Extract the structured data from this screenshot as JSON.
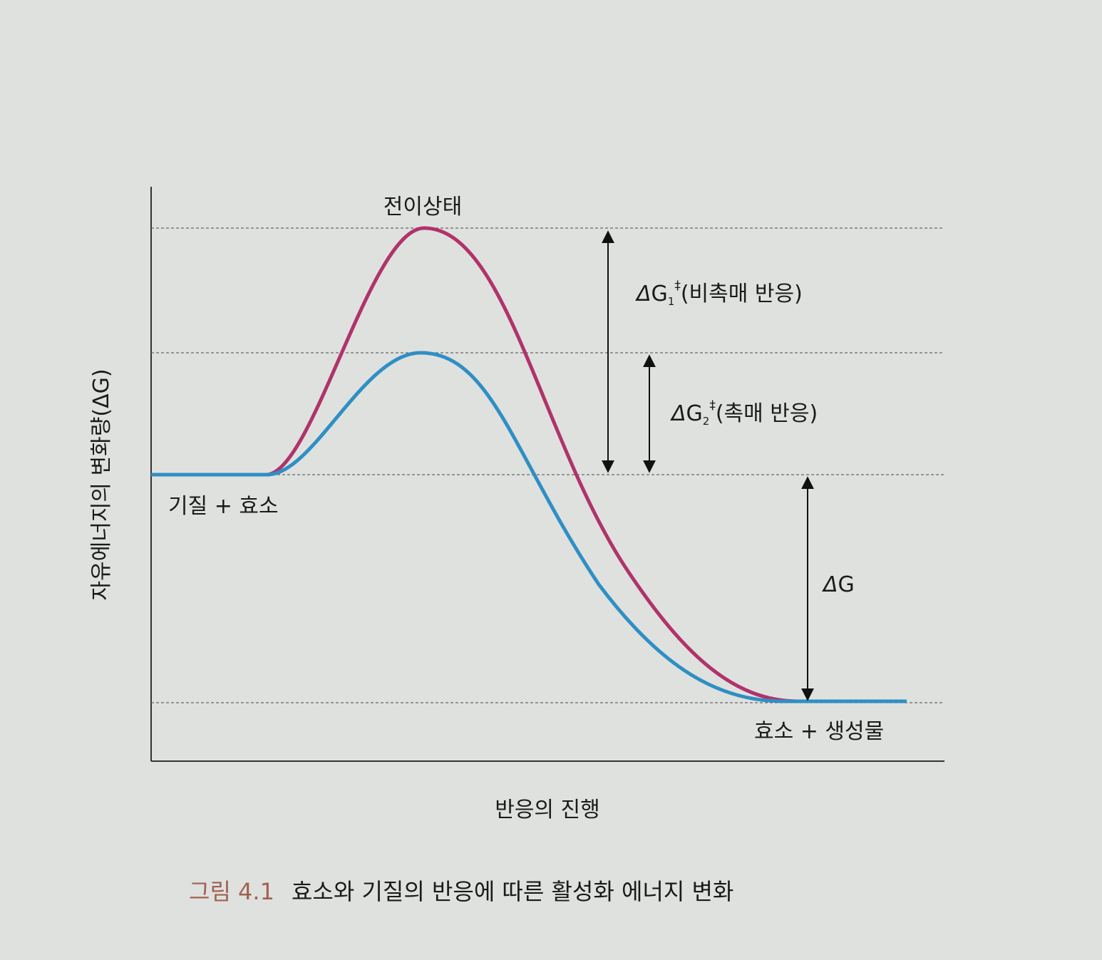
{
  "diagram": {
    "y_axis_label": "자유에너지의 변화량(ΔG)",
    "x_axis_label": "반응의 진행",
    "transition_state_label": "전이상태",
    "reactants_label": "기질 + 효소",
    "products_label": "효소 + 생성물",
    "uncatalyzed": {
      "delta": "Δ",
      "g": "G",
      "subscript": "1",
      "dagger": "‡",
      "desc": "(비촉매 반응)",
      "color": "#b0336b"
    },
    "catalyzed": {
      "delta": "Δ",
      "g": "G",
      "subscript": "2",
      "dagger": "‡",
      "desc": "(촉매 반응)",
      "color": "#2f8fc4"
    },
    "overall": {
      "delta": "Δ",
      "g": "G"
    }
  },
  "caption": {
    "number": "그림 4.1",
    "text": "효소와 기질의 반응에 따른 활성화 에너지 변화",
    "number_color": "#a0624f"
  }
}
